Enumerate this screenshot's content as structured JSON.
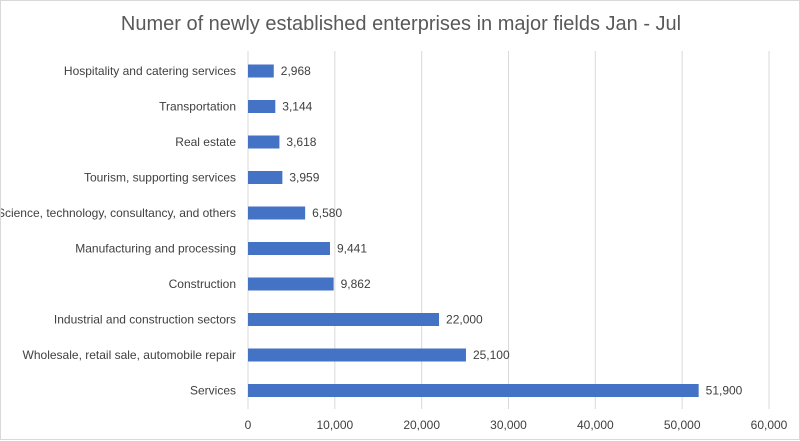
{
  "chart_data": {
    "type": "bar",
    "orientation": "horizontal",
    "title": "Numer of newly established enterprises in major fields Jan - Jul",
    "xlabel": "",
    "ylabel": "",
    "categories": [
      "Hospitality and catering services",
      "Transportation",
      "Real estate",
      "Tourism, supporting services",
      "Science, technology, consultancy, and others",
      "Manufacturing and processing",
      "Construction",
      "Industrial and construction sectors",
      "Wholesale, retail sale, automobile repair",
      "Services"
    ],
    "values": [
      2968,
      3144,
      3618,
      3959,
      6580,
      9441,
      9862,
      22000,
      25100,
      51900
    ],
    "data_labels": [
      "2,968",
      "3,144",
      "3,618",
      "3,959",
      "6,580",
      "9,441",
      "9,862",
      "22,000",
      "25,100",
      "51,900"
    ],
    "xlim": [
      0,
      60000
    ],
    "x_ticks": [
      0,
      10000,
      20000,
      30000,
      40000,
      50000,
      60000
    ],
    "x_tick_labels": [
      "0",
      "10,000",
      "20,000",
      "30,000",
      "40,000",
      "50,000",
      "60,000"
    ],
    "grid": "vertical",
    "legend": "none",
    "bar_color": "#4472c4",
    "grid_color": "#d9d9d9"
  }
}
